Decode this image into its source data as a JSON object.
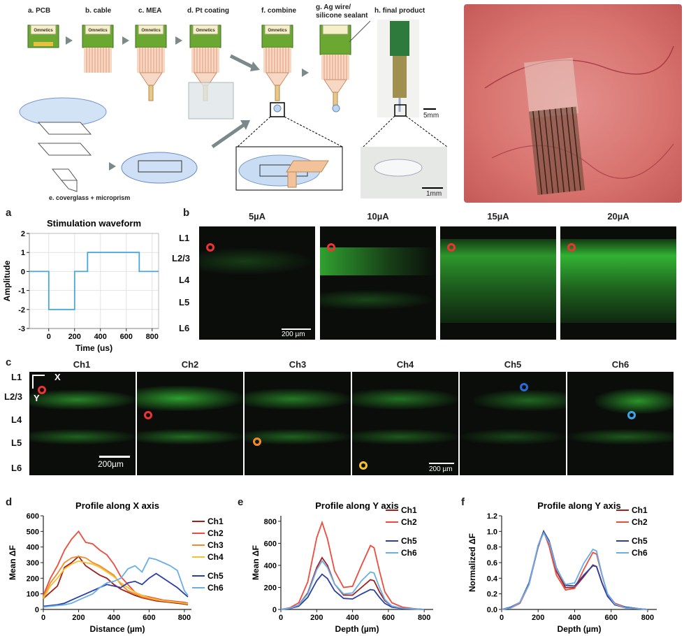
{
  "fab": {
    "steps": [
      "a. PCB",
      "b. cable",
      "c. MEA",
      "d. Pt coating",
      "f. combine",
      "g. Ag wire/",
      "silicone sealant",
      "h. final product",
      "e. coverglass + microprism"
    ],
    "connector_label": "Omnetics",
    "scale_5mm": "5mm",
    "scale_1mm": "1mm"
  },
  "panel_labels": {
    "a": "a",
    "b": "b",
    "c": "c",
    "d": "d",
    "e": "e",
    "f": "f"
  },
  "panel_b": {
    "currents": [
      "5µA",
      "10µA",
      "15µA",
      "20µA"
    ],
    "layers": [
      "L1",
      "L2/3",
      "L4",
      "L5",
      "L6"
    ],
    "scale": "200 µm"
  },
  "panel_c": {
    "channels": [
      "Ch1",
      "Ch2",
      "Ch3",
      "Ch4",
      "Ch5",
      "Ch6"
    ],
    "layers": [
      "L1",
      "L2/3",
      "L4",
      "L5",
      "L6"
    ],
    "axis_x": "X",
    "axis_y": "Y",
    "scale_left": "200µm",
    "scale_right": "200 µm"
  },
  "colors": {
    "ch1": "#a0201c",
    "ch2": "#f04a3c",
    "ch3": "#f58a2a",
    "ch4": "#f2c12e",
    "ch5": "#2a3fa8",
    "ch6": "#6aaee8",
    "waveform": "#4aa6d8",
    "green": "#3cd23c"
  },
  "chart_data": [
    {
      "type": "line",
      "title": "Stimulation waveform",
      "xlabel": "Time (us)",
      "ylabel": "Amplitude",
      "xlim": [
        -150,
        850
      ],
      "ylim": [
        -3,
        2
      ],
      "xticks": [
        0,
        200,
        400,
        600,
        800
      ],
      "yticks": [
        -3,
        -2,
        -1,
        0,
        1,
        2
      ],
      "grid": true,
      "series": [
        {
          "x": [
            -150,
            0,
            0,
            200,
            200,
            300,
            300,
            700,
            700,
            850
          ],
          "values": [
            0,
            0,
            -2,
            -2,
            0,
            0,
            1,
            1,
            0,
            0
          ]
        }
      ]
    },
    {
      "type": "line",
      "title": "Profile along X axis",
      "xlabel": "Distance (µm)",
      "ylabel": "Mean ΔF",
      "xlim": [
        0,
        840
      ],
      "ylim": [
        0,
        600
      ],
      "xticks": [
        0,
        200,
        400,
        600,
        800
      ],
      "yticks": [
        0,
        100,
        200,
        300,
        400,
        500,
        600
      ],
      "legend": "right",
      "x": [
        0,
        40,
        80,
        120,
        160,
        200,
        240,
        280,
        320,
        360,
        400,
        440,
        480,
        520,
        560,
        600,
        640,
        680,
        720,
        760,
        800,
        820
      ],
      "series": [
        {
          "name": "Ch1",
          "values": [
            70,
            110,
            150,
            270,
            300,
            340,
            280,
            250,
            220,
            200,
            160,
            130,
            110,
            90,
            75,
            65,
            55,
            50,
            45,
            40,
            35,
            30
          ]
        },
        {
          "name": "Ch2",
          "values": [
            90,
            200,
            280,
            380,
            450,
            500,
            430,
            420,
            380,
            350,
            290,
            210,
            160,
            110,
            90,
            80,
            70,
            60,
            55,
            50,
            45,
            40
          ]
        },
        {
          "name": "Ch3",
          "values": [
            80,
            170,
            230,
            300,
            330,
            340,
            330,
            300,
            280,
            250,
            220,
            160,
            120,
            100,
            80,
            70,
            60,
            55,
            50,
            45,
            40,
            35
          ]
        },
        {
          "name": "Ch4",
          "values": [
            70,
            150,
            200,
            260,
            290,
            310,
            300,
            290,
            270,
            240,
            210,
            170,
            140,
            110,
            90,
            75,
            65,
            55,
            50,
            45,
            40,
            35
          ]
        },
        {
          "name": "Ch5",
          "values": [
            20,
            25,
            30,
            40,
            60,
            80,
            100,
            120,
            140,
            160,
            150,
            140,
            170,
            180,
            160,
            200,
            230,
            200,
            170,
            140,
            100,
            80
          ]
        },
        {
          "name": "Ch6",
          "values": [
            15,
            20,
            25,
            30,
            40,
            60,
            80,
            100,
            140,
            170,
            180,
            200,
            260,
            280,
            240,
            330,
            320,
            300,
            280,
            250,
            120,
            90
          ]
        }
      ]
    },
    {
      "type": "line",
      "title": "Profile along Y axis",
      "xlabel": "Depth (µm)",
      "ylabel": "Mean ΔF",
      "xlim": [
        0,
        850
      ],
      "ylim": [
        0,
        850
      ],
      "xticks": [
        0,
        200,
        400,
        600,
        800
      ],
      "yticks": [
        0,
        200,
        400,
        600,
        800
      ],
      "legend": "right",
      "x": [
        0,
        50,
        100,
        150,
        200,
        230,
        260,
        300,
        350,
        400,
        450,
        500,
        520,
        550,
        580,
        620,
        680,
        750,
        800
      ],
      "series": [
        {
          "name": "Ch1",
          "values": [
            0,
            10,
            40,
            150,
            380,
            470,
            400,
            230,
            130,
            130,
            200,
            270,
            260,
            160,
            80,
            30,
            10,
            5,
            0
          ]
        },
        {
          "name": "Ch2",
          "values": [
            0,
            15,
            60,
            250,
            650,
            790,
            640,
            350,
            200,
            210,
            400,
            580,
            560,
            350,
            160,
            60,
            20,
            5,
            0
          ]
        },
        {
          "name": "Ch5",
          "values": [
            0,
            8,
            30,
            110,
            260,
            320,
            280,
            170,
            100,
            95,
            140,
            180,
            175,
            110,
            55,
            20,
            8,
            3,
            0
          ]
        },
        {
          "name": "Ch6",
          "values": [
            0,
            10,
            40,
            140,
            360,
            440,
            380,
            230,
            140,
            150,
            260,
            340,
            330,
            200,
            90,
            30,
            10,
            4,
            0
          ]
        }
      ]
    },
    {
      "type": "line",
      "title": "Profile along Y axis",
      "xlabel": "Depth (µm)",
      "ylabel": "Normalized ΔF",
      "xlim": [
        0,
        850
      ],
      "ylim": [
        0,
        1.2
      ],
      "xticks": [
        0,
        200,
        400,
        600,
        800
      ],
      "yticks": [
        0,
        0.2,
        0.4,
        0.6,
        0.8,
        1.0,
        1.2
      ],
      "legend": "right",
      "x": [
        0,
        50,
        100,
        150,
        200,
        230,
        260,
        300,
        350,
        400,
        450,
        500,
        520,
        550,
        580,
        620,
        680,
        750,
        800
      ],
      "series": [
        {
          "name": "Ch1",
          "values": [
            0,
            0.02,
            0.08,
            0.32,
            0.8,
            1.0,
            0.85,
            0.49,
            0.28,
            0.28,
            0.42,
            0.57,
            0.55,
            0.34,
            0.17,
            0.06,
            0.02,
            0.01,
            0
          ]
        },
        {
          "name": "Ch2",
          "values": [
            0,
            0.02,
            0.08,
            0.32,
            0.82,
            1.0,
            0.81,
            0.44,
            0.25,
            0.27,
            0.51,
            0.73,
            0.71,
            0.44,
            0.2,
            0.08,
            0.03,
            0.01,
            0
          ]
        },
        {
          "name": "Ch5",
          "values": [
            0,
            0.03,
            0.09,
            0.34,
            0.81,
            1.0,
            0.88,
            0.53,
            0.31,
            0.3,
            0.44,
            0.56,
            0.55,
            0.34,
            0.17,
            0.06,
            0.03,
            0.01,
            0
          ]
        },
        {
          "name": "Ch6",
          "values": [
            0,
            0.02,
            0.09,
            0.32,
            0.82,
            0.98,
            0.86,
            0.52,
            0.32,
            0.34,
            0.59,
            0.77,
            0.75,
            0.45,
            0.2,
            0.07,
            0.02,
            0.01,
            0
          ]
        }
      ]
    }
  ]
}
